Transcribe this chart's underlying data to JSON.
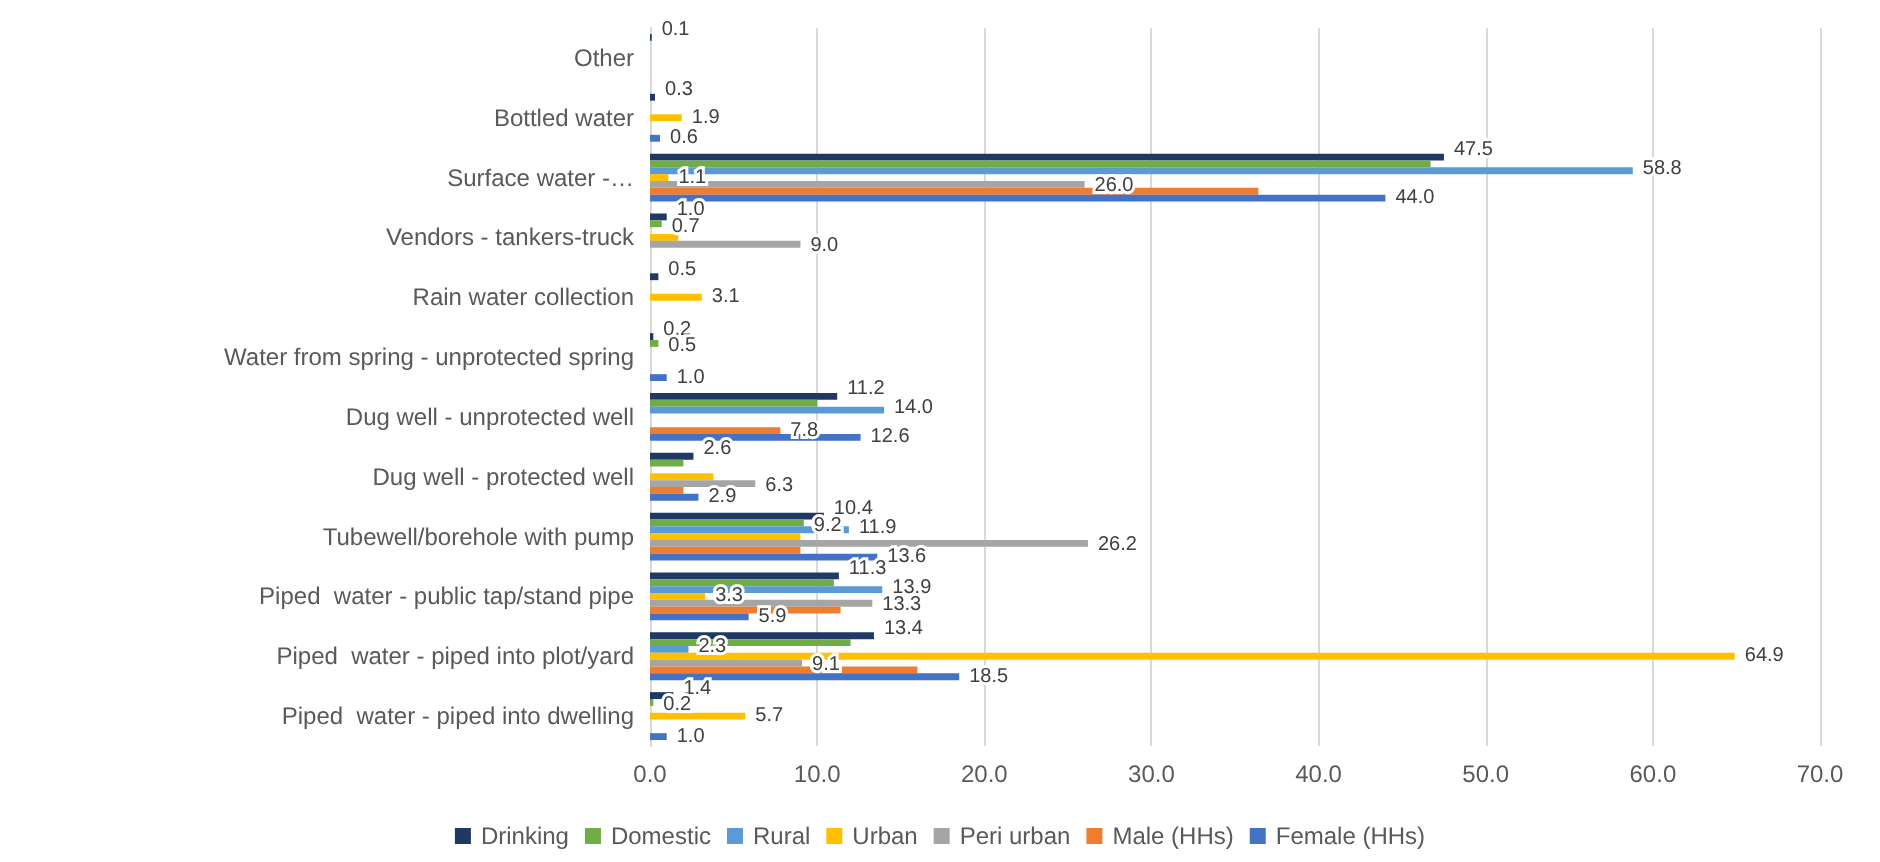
{
  "chart_data": {
    "type": "bar",
    "orientation": "horizontal",
    "categories": [
      "Other",
      "Bottled water",
      "Surface water -…",
      "Vendors - tankers-truck",
      "Rain water collection",
      "Water from spring - unprotected spring",
      "Dug well - unprotected well",
      "Dug well - protected well",
      "Tubewell/borehole with pump",
      "Piped  water - public tap/stand pipe",
      "Piped  water - piped into plot/yard",
      "Piped  water - piped into dwelling"
    ],
    "series": [
      {
        "name": "Drinking",
        "color": "#1f3864",
        "values": [
          0.1,
          0.3,
          47.5,
          1.0,
          0.5,
          0.2,
          11.2,
          2.6,
          10.4,
          11.3,
          13.4,
          1.4
        ],
        "value_labels": [
          "0.1",
          "0.3",
          "47.5",
          "1.0",
          "0.5",
          "0.2",
          "11.2",
          "2.6",
          "10.4",
          "11.3",
          "13.4",
          "1.4"
        ]
      },
      {
        "name": "Domestic",
        "color": "#70ad47",
        "values": [
          null,
          null,
          46.7,
          0.7,
          null,
          0.5,
          10.0,
          2.0,
          9.2,
          11.0,
          12.0,
          0.2
        ],
        "value_labels": [
          null,
          null,
          null,
          "0.7",
          null,
          "0.5",
          null,
          null,
          "9.2",
          null,
          null,
          "0.2"
        ]
      },
      {
        "name": "Rural",
        "color": "#5b9bd5",
        "values": [
          null,
          null,
          58.8,
          null,
          null,
          null,
          14.0,
          null,
          11.9,
          13.9,
          2.3,
          null
        ],
        "value_labels": [
          null,
          null,
          "58.8",
          null,
          null,
          null,
          "14.0",
          null,
          "11.9",
          "13.9",
          "2.3",
          null
        ]
      },
      {
        "name": "Urban",
        "color": "#ffc000",
        "values": [
          null,
          1.9,
          1.1,
          1.7,
          3.1,
          null,
          null,
          3.8,
          9.0,
          3.3,
          64.9,
          5.7
        ],
        "value_labels": [
          null,
          "1.9",
          "1.1",
          null,
          "3.1",
          null,
          null,
          null,
          null,
          "3.3",
          "64.9",
          "5.7"
        ]
      },
      {
        "name": "Peri urban",
        "color": "#a5a5a5",
        "values": [
          null,
          null,
          26.0,
          9.0,
          null,
          null,
          null,
          6.3,
          26.2,
          13.3,
          9.1,
          null
        ],
        "value_labels": [
          null,
          null,
          "26.0",
          "9.0",
          null,
          null,
          null,
          "6.3",
          "26.2",
          "13.3",
          "9.1",
          null
        ]
      },
      {
        "name": "Male (HHs)",
        "color": "#ed7d31",
        "values": [
          null,
          null,
          36.4,
          null,
          null,
          null,
          7.8,
          2.0,
          9.0,
          11.4,
          16.0,
          null
        ],
        "value_labels": [
          null,
          null,
          null,
          null,
          null,
          null,
          "7.8",
          null,
          null,
          null,
          null,
          null
        ]
      },
      {
        "name": "Female (HHs)",
        "color": "#4472c4",
        "values": [
          null,
          0.6,
          44.0,
          null,
          null,
          1.0,
          12.6,
          2.9,
          13.6,
          5.9,
          18.5,
          1.0
        ],
        "value_labels": [
          null,
          "0.6",
          "44.0",
          null,
          null,
          "1.0",
          "12.6",
          "2.9",
          "13.6",
          "5.9",
          "18.5",
          "1.0"
        ]
      }
    ],
    "xlim": [
      0,
      70
    ],
    "xticks": [
      {
        "value": 0,
        "label": "0.0"
      },
      {
        "value": 10,
        "label": "10.0"
      },
      {
        "value": 20,
        "label": "20.0"
      },
      {
        "value": 30,
        "label": "30.0"
      },
      {
        "value": 40,
        "label": "40.0"
      },
      {
        "value": 50,
        "label": "50.0"
      },
      {
        "value": 60,
        "label": "60.0"
      },
      {
        "value": 70,
        "label": "70.0"
      }
    ],
    "grid": "x",
    "legend": "bottom"
  }
}
